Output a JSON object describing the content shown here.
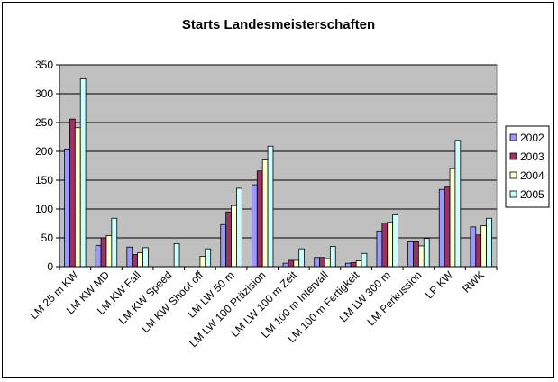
{
  "chart_data": {
    "type": "bar",
    "title": "Starts Landesmeisterschaften",
    "xlabel": "",
    "ylabel": "",
    "ylim": [
      0,
      350
    ],
    "yticks": [
      0,
      50,
      100,
      150,
      200,
      250,
      300,
      350
    ],
    "grid": true,
    "legend_position": "right",
    "categories": [
      "LM 25 m KW",
      "LM KW MD",
      "LM KW Fall",
      "LM KW Speed",
      "LM KW Shoot off",
      "LM LW 50 m",
      "LM LW 100 Präzision",
      "LM LW 100 m Zeit",
      "LM 100 m Intervall",
      "LM 100 m Fertigkeit",
      "LM LW 300 m",
      "LM Perkussion",
      "LP KW",
      "RWK"
    ],
    "series": [
      {
        "name": "2002",
        "color": "#9999ff",
        "values": [
          204,
          37,
          34,
          0,
          0,
          73,
          142,
          6,
          16,
          6,
          62,
          43,
          134,
          69
        ]
      },
      {
        "name": "2003",
        "color": "#993366",
        "values": [
          256,
          50,
          21,
          0,
          0,
          95,
          166,
          11,
          16,
          7,
          76,
          43,
          138,
          55
        ]
      },
      {
        "name": "2004",
        "color": "#ffffcc",
        "values": [
          241,
          54,
          24,
          0,
          18,
          106,
          185,
          11,
          14,
          10,
          77,
          36,
          170,
          71
        ]
      },
      {
        "name": "2005",
        "color": "#ccffff",
        "values": [
          326,
          84,
          33,
          40,
          31,
          136,
          209,
          31,
          35,
          23,
          90,
          49,
          219,
          84
        ]
      }
    ],
    "plot_background": "#c0c0c0"
  }
}
